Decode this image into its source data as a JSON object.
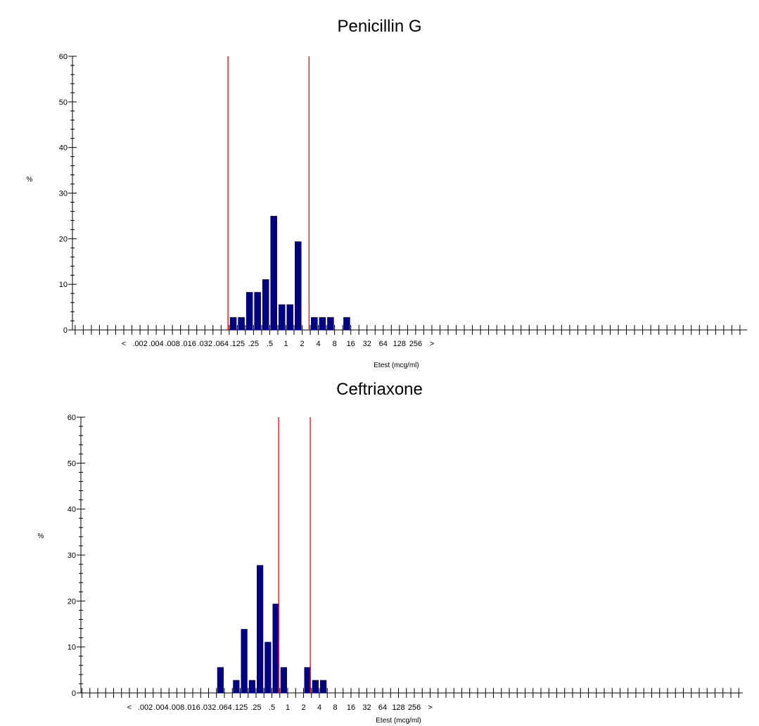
{
  "chart_data": [
    {
      "type": "bar",
      "title": "Penicillin G",
      "xlabel": "Etest (mcg/ml)",
      "ylabel": "%",
      "ylim": [
        0,
        60
      ],
      "yticks": [
        "0",
        "10",
        "20",
        "30",
        "40",
        "50",
        "60"
      ],
      "x_tick_labels": [
        "<",
        ".002",
        ".004",
        ".008",
        ".016",
        ".032",
        ".064",
        ".125",
        ".25",
        ".5",
        "1",
        "2",
        "4",
        "8",
        "16",
        "32",
        "64",
        "128",
        "256",
        ">"
      ],
      "bar_color": "#000080",
      "breakpoint_color": "#ff0000",
      "breakpoint_lines_after_label": [
        ".064",
        "2"
      ],
      "bars": [
        {
          "x": ".125",
          "values": [
            2.8,
            2.8
          ]
        },
        {
          "x": ".25",
          "values": [
            8.3,
            8.3
          ]
        },
        {
          "x": ".5",
          "values": [
            11.1,
            25.0
          ]
        },
        {
          "x": "1",
          "values": [
            5.6,
            5.6
          ]
        },
        {
          "x": "2",
          "values": [
            19.4,
            0
          ]
        },
        {
          "x": "4",
          "values": [
            2.8,
            2.8
          ]
        },
        {
          "x": "8",
          "values": [
            2.8,
            0
          ]
        },
        {
          "x": "16",
          "values": [
            2.8,
            0
          ]
        }
      ]
    },
    {
      "type": "bar",
      "title": "Ceftriaxone",
      "xlabel": "Etest (mcg/ml)",
      "ylabel": "%",
      "ylim": [
        0,
        60
      ],
      "yticks": [
        "0",
        "10",
        "20",
        "30",
        "40",
        "50",
        "60"
      ],
      "x_tick_labels": [
        "<",
        ".002",
        ".004",
        ".008",
        ".016",
        ".032",
        ".064",
        ".125",
        ".25",
        ".5",
        "1",
        "2",
        "4",
        "8",
        "16",
        "32",
        "64",
        "128",
        "256",
        ">"
      ],
      "bar_color": "#000080",
      "breakpoint_color": "#ff0000",
      "breakpoint_lines_after_label": [
        ".5",
        "2"
      ],
      "bars": [
        {
          "x": ".064",
          "values": [
            5.6,
            0
          ]
        },
        {
          "x": ".125",
          "values": [
            2.8,
            13.9
          ]
        },
        {
          "x": ".25",
          "values": [
            2.8,
            27.8
          ]
        },
        {
          "x": ".5",
          "values": [
            11.1,
            19.4
          ]
        },
        {
          "x": "1",
          "values": [
            5.6,
            0
          ]
        },
        {
          "x": "2",
          "values": [
            0,
            5.6
          ]
        },
        {
          "x": "4",
          "values": [
            2.8,
            2.8
          ]
        }
      ]
    }
  ]
}
